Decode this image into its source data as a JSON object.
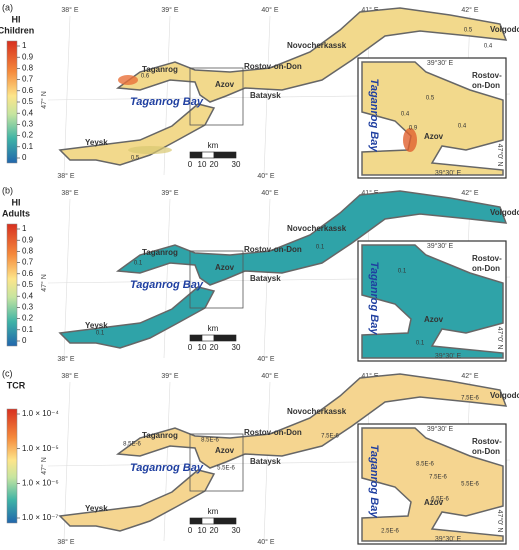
{
  "panels": [
    {
      "label": "(a)",
      "legend_title": [
        "HI",
        "Children"
      ],
      "legend_scale": "linear",
      "legend_range": [
        0,
        1
      ],
      "legend_ticks": [
        1,
        0.9,
        0.8,
        0.7,
        0.6,
        0.5,
        0.4,
        0.3,
        0.2,
        0.1,
        0
      ],
      "water_color": "#f2d98c",
      "lon_top": [
        "38° E",
        "39° E",
        "40° E",
        "41° E",
        "42° E"
      ],
      "lon_bottom": [
        "38° E",
        "40° E"
      ],
      "lat": "47° N",
      "places": {
        "taganrog": "Taganrog",
        "rostov": "Rostov-on-Don",
        "novocherkassk": "Novocherkassk",
        "volgodonsk": "Volgodonsk",
        "azov": "Azov",
        "bataysk": "Bataysk",
        "yeysk": "Yeysk",
        "bay": "Taganrog Bay"
      },
      "scale_unit": "km",
      "scale_ticks": [
        0,
        10,
        20,
        30
      ],
      "contours": [
        0.6,
        0.5,
        0.5,
        0.4
      ],
      "inset": {
        "lon_top": "39°30' E",
        "city": [
          "Rostov-",
          "on-Don"
        ],
        "bay": "Taganrog Bay",
        "town": "Azov",
        "lat": "47°0' N",
        "lon_bottom": "39°30' E",
        "contours": [
          0.5,
          0.4,
          0.4,
          0.9
        ]
      }
    },
    {
      "label": "(b)",
      "legend_title": [
        "HI",
        "Adults"
      ],
      "legend_scale": "linear",
      "legend_range": [
        0,
        1
      ],
      "legend_ticks": [
        1,
        0.9,
        0.8,
        0.7,
        0.6,
        0.5,
        0.4,
        0.3,
        0.2,
        0.1,
        0
      ],
      "water_color": "#2fa3a8",
      "lon_top": [
        "38° E",
        "39° E",
        "40° E",
        "41° E",
        "42° E"
      ],
      "lon_bottom": [
        "38° E",
        "40° E"
      ],
      "lat": "47° N",
      "places": {
        "taganrog": "Taganrog",
        "rostov": "Rostov-on-Don",
        "novocherkassk": "Novocherkassk",
        "volgodonsk": "Volgodonsk",
        "azov": "Azov",
        "bataysk": "Bataysk",
        "yeysk": "Yeysk",
        "bay": "Taganrog Bay"
      },
      "scale_unit": "km",
      "scale_ticks": [
        0,
        10,
        20,
        30
      ],
      "contours": [
        0.1,
        0.1,
        0.1
      ],
      "inset": {
        "lon_top": "39°30' E",
        "city": [
          "Rostov-",
          "on-Don"
        ],
        "bay": "Taganrog Bay",
        "town": "Azov",
        "lat": "47°0' N",
        "lon_bottom": "39°30' E",
        "contours": [
          0.1,
          0.1
        ]
      }
    },
    {
      "label": "(c)",
      "legend_title": [
        "TCR"
      ],
      "legend_scale": "log",
      "legend_range": [
        1e-07,
        0.0001
      ],
      "legend_ticks": [
        {
          "value": 0.0001,
          "label": "1.0 × 10⁻⁴"
        },
        {
          "value": 1e-05,
          "label": "1.0 × 10⁻⁵"
        },
        {
          "value": 1e-06,
          "label": "1.0 × 10⁻⁶"
        },
        {
          "value": 1e-07,
          "label": "1.0 × 10⁻⁷"
        }
      ],
      "water_color": "#f5d590",
      "lon_top": [
        "38° E",
        "39° E",
        "40° E",
        "41° E",
        "42° E"
      ],
      "lon_bottom": [
        "38° E",
        "40° E"
      ],
      "lat": "47° N",
      "places": {
        "taganrog": "Taganrog",
        "rostov": "Rostov-on-Don",
        "novocherkassk": "Novocherkassk",
        "volgodonsk": "Volgodonsk",
        "azov": "Azov",
        "bataysk": "Bataysk",
        "yeysk": "Yeysk",
        "bay": "Taganrog Bay"
      },
      "scale_unit": "km",
      "scale_ticks": [
        0,
        10,
        20,
        30
      ],
      "contours": [
        "8.5E-6",
        "8.5E-6",
        "5.5E-6",
        "7.5E-6",
        "7.5E-6"
      ],
      "inset": {
        "lon_top": "39°30' E",
        "city": [
          "Rostov-",
          "on-Don"
        ],
        "bay": "Taganrog Bay",
        "town": "Azov",
        "lat": "47°0' N",
        "lon_bottom": "39°30' E",
        "contours": [
          "8.5E-6",
          "7.5E-6",
          "5.5E-6",
          "6.5E-6",
          "2.5E-6"
        ]
      }
    }
  ]
}
